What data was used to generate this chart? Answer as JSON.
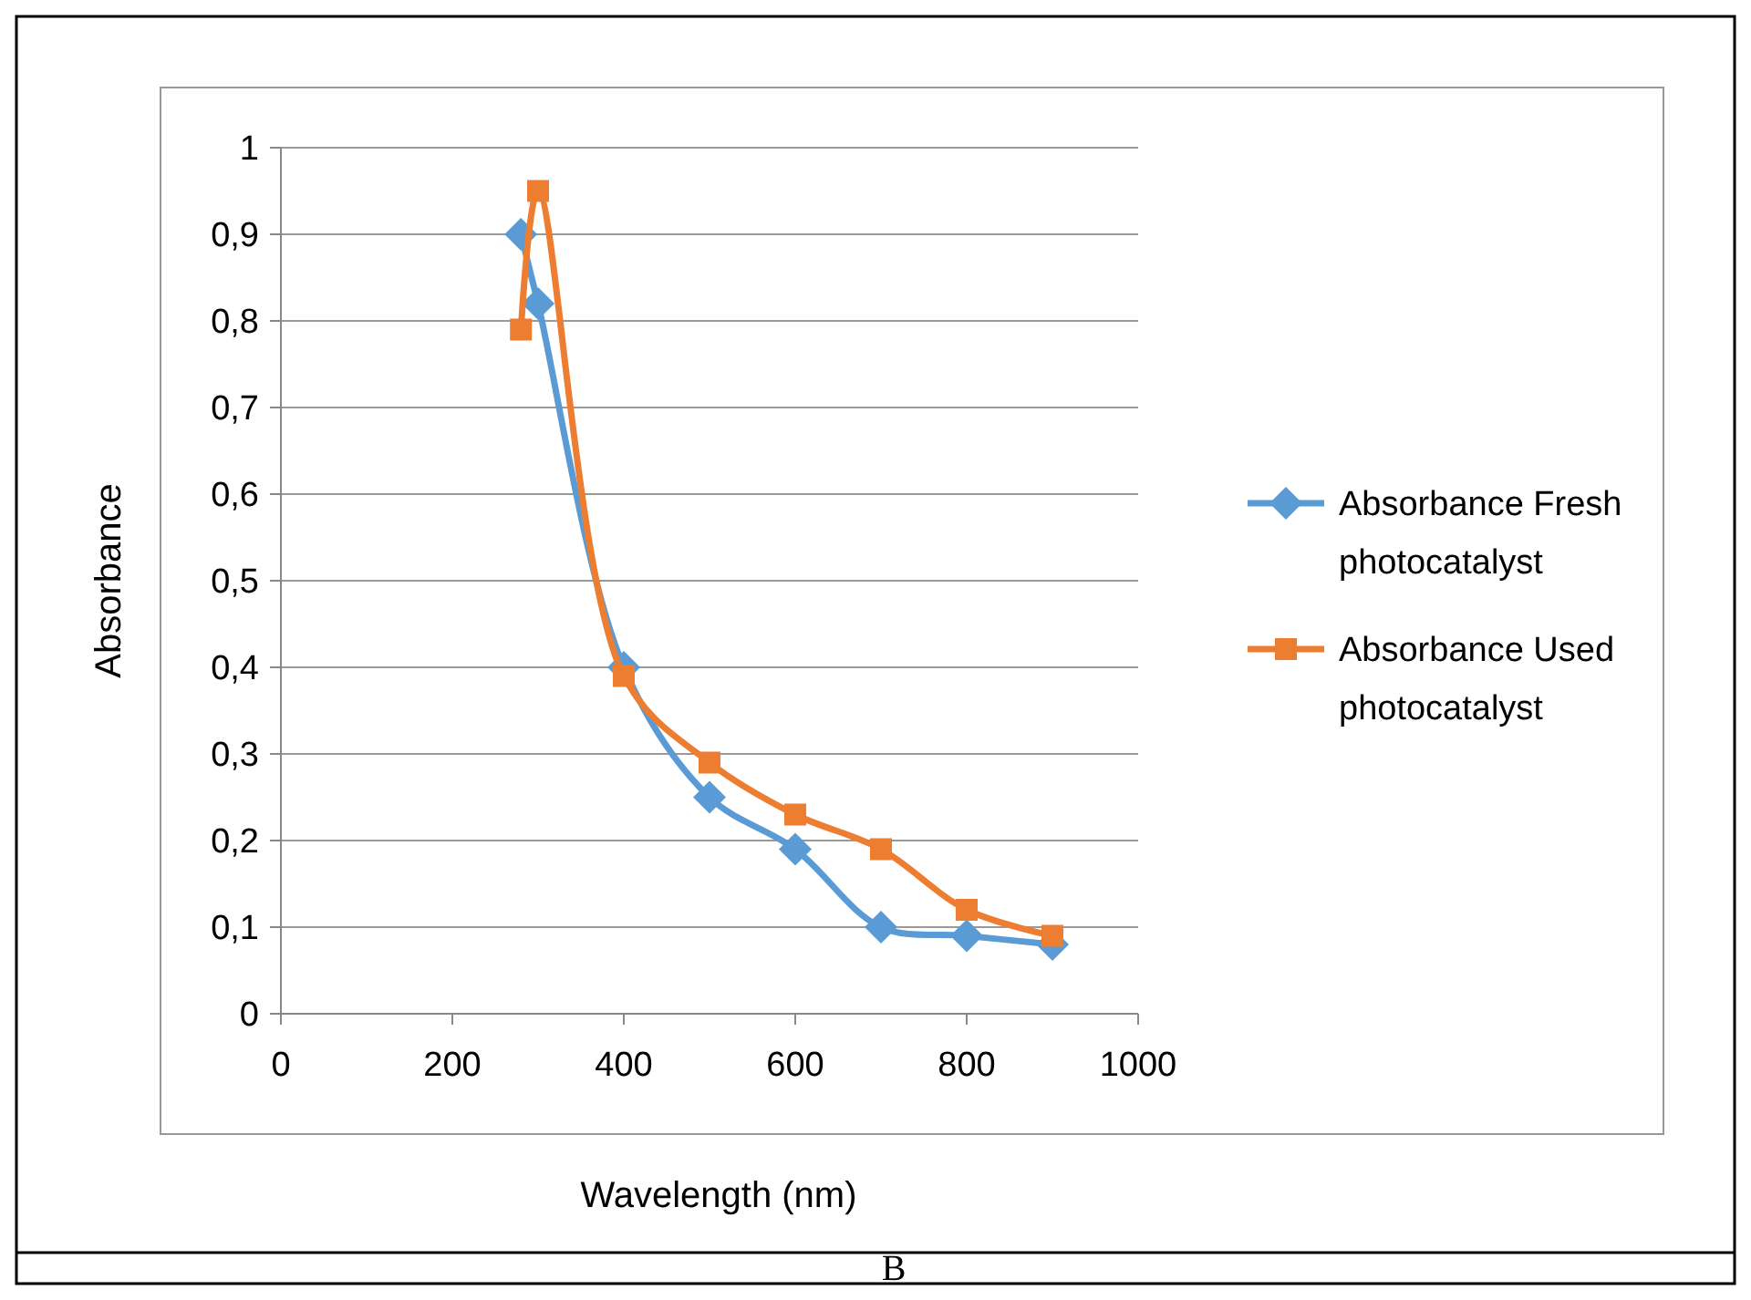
{
  "chart_data": {
    "type": "line",
    "xlabel": "Wavelength (nm)",
    "ylabel": "Absorbance",
    "annotations": [
      "B"
    ],
    "xlim": [
      0,
      1000
    ],
    "xticks": [
      0,
      200,
      400,
      600,
      800,
      1000
    ],
    "ylim": [
      0,
      1
    ],
    "yticks": [
      0,
      {
        "value": 0.1,
        "label": "0,1"
      },
      {
        "value": 0.2,
        "label": "0,2"
      },
      {
        "value": 0.3,
        "label": "0,3"
      },
      {
        "value": 0.4,
        "label": "0,4"
      },
      {
        "value": 0.5,
        "label": "0,5"
      },
      {
        "value": 0.6,
        "label": "0,6"
      },
      {
        "value": 0.7,
        "label": "0,7"
      },
      {
        "value": 0.8,
        "label": "0,8"
      },
      {
        "value": 0.9,
        "label": "0,9"
      },
      1
    ],
    "grid": "y",
    "legend": "right",
    "line_style": "solid",
    "x": [
      280,
      300,
      400,
      500,
      600,
      700,
      800,
      900
    ],
    "series": [
      {
        "name": "Absorbance Fresh photocatalyst",
        "color": "#5b9bd5",
        "marker": "diamond",
        "values": [
          0.9,
          0.82,
          0.4,
          0.25,
          0.19,
          0.1,
          0.09,
          0.08
        ]
      },
      {
        "name": "Absorbance Used photocatalyst",
        "color": "#ed7d31",
        "marker": "square",
        "values": [
          0.79,
          0.95,
          0.39,
          0.29,
          0.23,
          0.19,
          0.12,
          0.09
        ]
      }
    ]
  }
}
